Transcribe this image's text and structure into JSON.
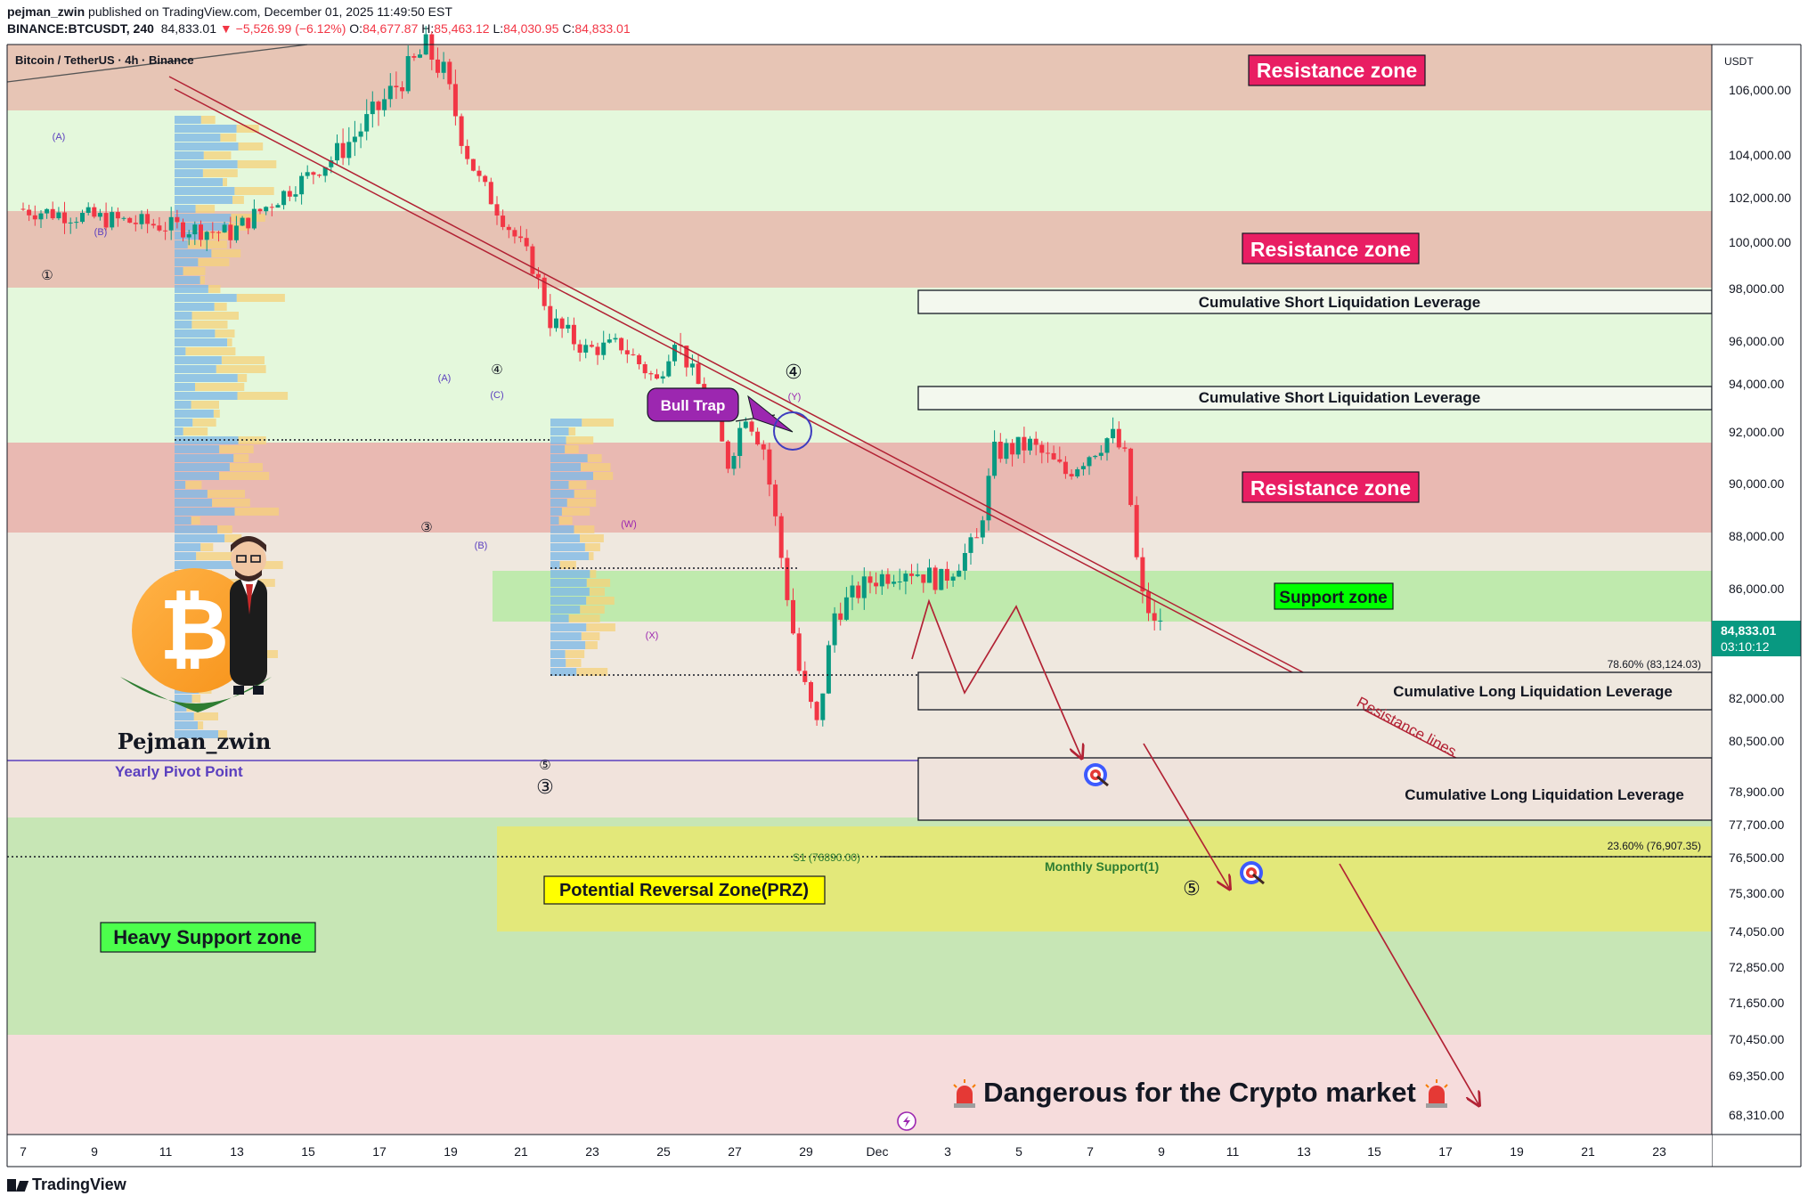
{
  "header": {
    "author": "pejman_zwin",
    "published": "published on TradingView.com, December 01, 2025 11:49:50 EST",
    "symbol": "BINANCE:BTCUSDT, 240",
    "last": "84,833.01",
    "change": "▼ −5,526.99 (−6.12%)",
    "o_label": "O:",
    "o": "84,677.87",
    "h_label": "H:",
    "h": "85,463.12",
    "l_label": "L:",
    "l": "84,030.95",
    "c_label": "C:",
    "c": "84,833.01"
  },
  "footer": {
    "brand": "TradingView"
  },
  "chart_data": {
    "type": "candlestick",
    "title": "Bitcoin / TetherUS · 4h · Binance",
    "currency": "USDT",
    "price_scale_type": "non-linear (as printed)",
    "y_ticks": [
      {
        "price": 106000,
        "label": "106,000.00"
      },
      {
        "price": 104000,
        "label": "104,000.00"
      },
      {
        "price": 102000,
        "label": "102,000.00"
      },
      {
        "price": 100000,
        "label": "100,000.00"
      },
      {
        "price": 98000,
        "label": "98,000.00"
      },
      {
        "price": 96000,
        "label": "96,000.00"
      },
      {
        "price": 94000,
        "label": "94,000.00"
      },
      {
        "price": 92000,
        "label": "92,000.00"
      },
      {
        "price": 90000,
        "label": "90,000.00"
      },
      {
        "price": 88000,
        "label": "88,000.00"
      },
      {
        "price": 86000,
        "label": "86,000.00"
      },
      {
        "price": 82000,
        "label": "82,000.00"
      },
      {
        "price": 80500,
        "label": "80,500.00"
      },
      {
        "price": 78900,
        "label": "78,900.00"
      },
      {
        "price": 77700,
        "label": "77,700.00"
      },
      {
        "price": 76500,
        "label": "76,500.00"
      },
      {
        "price": 75300,
        "label": "75,300.00"
      },
      {
        "price": 74050,
        "label": "74,050.00"
      },
      {
        "price": 72850,
        "label": "72,850.00"
      },
      {
        "price": 71650,
        "label": "71,650.00"
      },
      {
        "price": 70450,
        "label": "70,450.00"
      },
      {
        "price": 69350,
        "label": "69,350.00"
      },
      {
        "price": 68310,
        "label": "68,310.00"
      }
    ],
    "x_ticks": [
      "7",
      "9",
      "11",
      "13",
      "15",
      "17",
      "19",
      "21",
      "23",
      "25",
      "27",
      "29",
      "Dec",
      "3",
      "5",
      "7",
      "9",
      "11",
      "13",
      "15",
      "17",
      "19",
      "21",
      "23"
    ],
    "last_price": {
      "value": "84,833.01",
      "countdown": "03:10:12",
      "color": "#089981"
    },
    "candle_colors": {
      "up": "#089981",
      "down": "#f23645"
    },
    "price_path": [
      [
        0,
        101500
      ],
      [
        6,
        100400
      ],
      [
        10,
        105200
      ],
      [
        11.5,
        107300
      ],
      [
        12,
        106500
      ],
      [
        13,
        102800
      ],
      [
        14.5,
        99000
      ],
      [
        15,
        96800
      ],
      [
        16,
        95600
      ],
      [
        17,
        95800
      ],
      [
        18,
        94100
      ],
      [
        18.5,
        96200
      ],
      [
        19.5,
        92800
      ],
      [
        20,
        90800
      ],
      [
        20.5,
        92800
      ],
      [
        21,
        91400
      ],
      [
        22,
        83000
      ],
      [
        22.5,
        81000
      ],
      [
        23,
        85100
      ],
      [
        24,
        86300
      ],
      [
        25,
        86800
      ],
      [
        26,
        86300
      ],
      [
        27,
        87800
      ],
      [
        27.5,
        91200
      ],
      [
        28.5,
        91500
      ],
      [
        29.5,
        90400
      ],
      [
        30.8,
        91900
      ],
      [
        31.2,
        90900
      ],
      [
        31.6,
        85800
      ],
      [
        32,
        84833.01
      ]
    ],
    "zones": [
      {
        "label": "Resistance zone",
        "kind": "resistance",
        "color": "#e91e63"
      },
      {
        "label": "Resistance zone",
        "kind": "resistance",
        "color": "#e91e63"
      },
      {
        "label": "Resistance zone",
        "kind": "resistance",
        "color": "#e91e63"
      },
      {
        "label": "Support zone",
        "kind": "support",
        "color": "#00ff00"
      },
      {
        "label": "Heavy Support zone",
        "kind": "support",
        "color": "#4cff4c"
      },
      {
        "label": "Potential Reversal Zone(PRZ)",
        "kind": "prz",
        "color": "#ffff00"
      }
    ],
    "liquidation_boxes": [
      {
        "label": "Cumulative Short Liquidation Leverage"
      },
      {
        "label": "Cumulative Short Liquidation Leverage"
      },
      {
        "label": "Cumulative Long Liquidation Leverage"
      },
      {
        "label": "Cumulative Long Liquidation Leverage"
      }
    ],
    "fib_levels": [
      {
        "ratio": "78.60%",
        "price": 83124.03,
        "label": "78.60% (83,124.03)"
      },
      {
        "ratio": "23.60%",
        "price": 76907.35,
        "label": "23.60% (76,907.35)"
      }
    ],
    "pivot_labels": {
      "yearly": "Yearly Pivot Point",
      "s1": "S1 (76890.00)",
      "monthly": "Monthly Support(1)"
    },
    "annotations": {
      "bull_trap": "Bull Trap",
      "resistance_lines": "Resistance lines",
      "danger": "Dangerous for the Crypto market",
      "author_badge": "Pejman_zwin"
    },
    "wave_labels": [
      "①",
      "(A)",
      "(B)",
      "④",
      "(A)",
      "(C)",
      "③",
      "(B)",
      "⑤",
      "③",
      "(W)",
      "(X)",
      "④",
      "(Y)",
      "⑤"
    ],
    "grid": false,
    "legend": "top-left"
  }
}
